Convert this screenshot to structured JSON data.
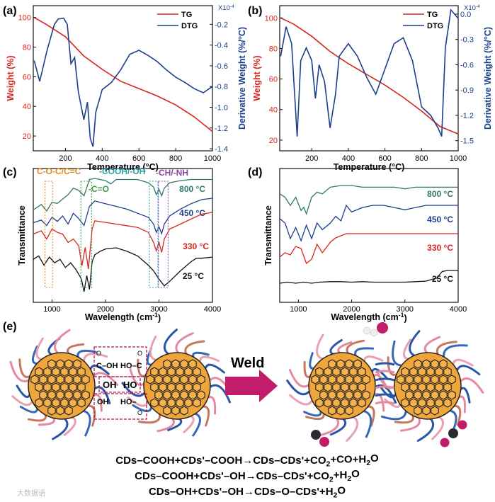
{
  "panels": {
    "a": {
      "label": "(a)"
    },
    "b": {
      "label": "(b)"
    },
    "c": {
      "label": "(c)"
    },
    "d": {
      "label": "(d)"
    },
    "e": {
      "label": "(e)"
    }
  },
  "chart_data": [
    {
      "id": "a",
      "type": "line",
      "title": "",
      "xlabel": "Temperature (°C)",
      "ylabel": "Weight (%)",
      "y2label": "Derivative Weight (%/°C)",
      "y2scale": "X10-4",
      "xlim": [
        25,
        1000
      ],
      "ylim": [
        10,
        108
      ],
      "y2lim": [
        -1.42,
        -0.02
      ],
      "xticks": [
        200,
        400,
        600,
        800,
        1000
      ],
      "yticks": [
        20,
        40,
        60,
        80,
        100
      ],
      "y2ticks": [
        -0.2,
        -0.4,
        -0.6,
        -0.8,
        -1.0,
        -1.2,
        -1.4
      ],
      "legend": [
        "TG",
        "DTG"
      ],
      "series": [
        {
          "name": "TG",
          "axis": "left",
          "color": "#d7261e",
          "x": [
            30,
            100,
            200,
            300,
            400,
            500,
            600,
            700,
            800,
            900,
            1000
          ],
          "y": [
            100,
            95,
            87,
            74,
            65,
            57,
            52,
            47,
            41,
            33,
            23
          ]
        },
        {
          "name": "DTG",
          "axis": "right",
          "color": "#1b3f8b",
          "x": [
            30,
            60,
            100,
            140,
            160,
            190,
            210,
            230,
            250,
            270,
            300,
            320,
            335,
            350,
            365,
            400,
            450,
            500,
            550,
            600,
            650,
            700,
            750,
            800,
            850,
            900,
            950,
            1000
          ],
          "y": [
            -0.55,
            -0.75,
            -0.45,
            -0.2,
            -0.15,
            -0.14,
            -0.2,
            -0.58,
            -0.52,
            -0.85,
            -1.12,
            -0.95,
            -1.3,
            -1.38,
            -1.05,
            -0.83,
            -0.76,
            -0.64,
            -0.49,
            -0.45,
            -0.5,
            -0.56,
            -0.64,
            -0.71,
            -0.76,
            -0.82,
            -0.86,
            -0.8
          ]
        }
      ]
    },
    {
      "id": "b",
      "type": "line",
      "xlabel": "Temperature (°C)",
      "ylabel": "Weight (%)",
      "y2label": "Derivative Weight (%/°C)",
      "y2scale": "X10-4",
      "xlim": [
        25,
        1000
      ],
      "ylim": [
        13,
        108
      ],
      "y2lim": [
        -1.62,
        0.1
      ],
      "xticks": [
        200,
        400,
        600,
        800,
        1000
      ],
      "yticks": [
        20,
        40,
        60,
        80,
        100
      ],
      "y2ticks": [
        0.0,
        -0.3,
        -0.6,
        -0.9,
        -1.2,
        -1.5
      ],
      "legend": [
        "TG",
        "DTG"
      ],
      "series": [
        {
          "name": "TG",
          "axis": "left",
          "color": "#d7261e",
          "x": [
            30,
            100,
            200,
            300,
            400,
            500,
            600,
            700,
            800,
            900,
            1000
          ],
          "y": [
            100,
            96,
            88,
            78,
            70,
            63,
            56,
            48,
            39,
            29,
            24
          ]
        },
        {
          "name": "DTG",
          "axis": "right",
          "color": "#1b3f8b",
          "x": [
            30,
            60,
            90,
            120,
            140,
            170,
            200,
            220,
            240,
            270,
            300,
            330,
            350,
            400,
            450,
            500,
            550,
            600,
            650,
            700,
            750,
            800,
            850,
            890,
            910,
            930,
            960,
            1000
          ],
          "y": [
            -0.5,
            -0.15,
            -0.35,
            -1.45,
            -0.55,
            -0.4,
            -0.55,
            -1.0,
            -0.6,
            -0.8,
            -1.35,
            -0.95,
            -0.5,
            -0.35,
            -0.5,
            -0.75,
            -0.95,
            -0.65,
            -0.35,
            -0.28,
            -0.55,
            -1.1,
            -1.2,
            -1.35,
            -1.45,
            -0.4,
            0.05,
            -0.05
          ]
        }
      ]
    },
    {
      "id": "c",
      "type": "line",
      "xlabel": "Wavelength (cm-1)",
      "ylabel": "Transmittance",
      "xlim": [
        650,
        4000
      ],
      "xticks": [
        1000,
        2000,
        3000,
        4000
      ],
      "annotations": [
        "C-O-C/C=C",
        "-COOH/-OH",
        "-CH/-NH",
        "-C=O"
      ],
      "series": [
        {
          "name": "800 °C",
          "color": "#2e7a6a",
          "offset": 0,
          "x": [
            650,
            800,
            900,
            1000,
            1100,
            1200,
            1300,
            1400,
            1500,
            1600,
            1700,
            1800,
            2000,
            2100,
            2200,
            2400,
            2600,
            2800,
            2900,
            2950,
            3000,
            3050,
            3100,
            3200,
            3400,
            3600,
            3800,
            4000
          ],
          "y": [
            0.2,
            0.7,
            0.1,
            0.9,
            0.8,
            1.2,
            1.6,
            2.2,
            2.0,
            1.5,
            3.0,
            3.1,
            2.9,
            2.6,
            3.0,
            3.0,
            3.0,
            2.7,
            2.3,
            1.6,
            2.1,
            1.5,
            2.2,
            2.7,
            2.9,
            3.0,
            3.0,
            3.0
          ]
        },
        {
          "name": "450 °C",
          "color": "#1b3f8b",
          "offset": 0,
          "x": [
            650,
            800,
            900,
            1000,
            1100,
            1200,
            1300,
            1400,
            1500,
            1600,
            1700,
            1800,
            2000,
            2200,
            2400,
            2600,
            2800,
            2900,
            2950,
            3000,
            3050,
            3100,
            3200,
            3400,
            3600,
            3800,
            4000
          ],
          "y": [
            0.4,
            0.6,
            0.2,
            0.8,
            0.5,
            0.9,
            0.3,
            1.1,
            0.7,
            0.2,
            1.6,
            2.0,
            1.8,
            1.6,
            1.4,
            1.1,
            0.8,
            0.3,
            -0.3,
            0.1,
            -0.4,
            0.3,
            0.9,
            1.4,
            1.8,
            2.1,
            2.2
          ]
        },
        {
          "name": "330 °C",
          "color": "#d7261e",
          "offset": 0,
          "x": [
            650,
            800,
            900,
            1000,
            1100,
            1200,
            1300,
            1400,
            1500,
            1560,
            1620,
            1680,
            1750,
            1800,
            2000,
            2200,
            2400,
            2600,
            2800,
            2900,
            2950,
            3000,
            3050,
            3100,
            3200,
            3400,
            3600,
            3800,
            4000
          ],
          "y": [
            0.3,
            0.5,
            0.0,
            0.6,
            0.4,
            0.3,
            -0.2,
            0.0,
            -0.4,
            -1.6,
            -0.5,
            -1.8,
            0.6,
            1.1,
            1.0,
            0.9,
            0.8,
            0.7,
            0.4,
            -0.2,
            -0.7,
            -0.2,
            -0.8,
            0.0,
            0.6,
            0.9,
            1.2,
            1.5,
            1.6
          ]
        },
        {
          "name": "25 °C",
          "color": "#111111",
          "offset": 0,
          "x": [
            650,
            750,
            850,
            950,
            1050,
            1150,
            1250,
            1350,
            1450,
            1550,
            1600,
            1650,
            1700,
            1750,
            1800,
            1900,
            2000,
            2200,
            2400,
            2600,
            2800,
            2900,
            3000,
            3100,
            3200,
            3400,
            3600,
            3700,
            3800,
            4000
          ],
          "y": [
            -0.6,
            -0.3,
            -1.1,
            -0.4,
            -0.9,
            -0.6,
            -1.3,
            -0.9,
            -1.5,
            -2.3,
            -3.4,
            -2.0,
            -3.2,
            -0.8,
            -0.2,
            0.1,
            0.3,
            0.4,
            0.1,
            -0.3,
            -1.1,
            -1.6,
            -2.3,
            -2.9,
            -2.5,
            -1.6,
            -0.8,
            -0.5,
            -0.5,
            -0.4
          ]
        }
      ]
    },
    {
      "id": "d",
      "type": "line",
      "xlabel": "Wavelength (cm-1)",
      "ylabel": "Transmittance",
      "xlim": [
        650,
        4000
      ],
      "xticks": [
        1000,
        2000,
        3000,
        4000
      ],
      "series": [
        {
          "name": "800 °C",
          "color": "#2e7a6a",
          "x": [
            650,
            750,
            850,
            950,
            1050,
            1100,
            1150,
            1250,
            1350,
            1450,
            1600,
            1800,
            2000,
            2200,
            2400,
            2600,
            2800,
            3000,
            3200,
            3400,
            3600,
            3800,
            4000
          ],
          "y": [
            3.2,
            3.0,
            2.5,
            3.0,
            2.2,
            2.4,
            2.0,
            3.0,
            3.3,
            3.2,
            3.6,
            3.7,
            3.7,
            3.6,
            3.6,
            3.6,
            3.6,
            3.5,
            3.6,
            3.6,
            3.6,
            3.6,
            3.6
          ]
        },
        {
          "name": "450 °C",
          "color": "#1b3f8b",
          "x": [
            650,
            750,
            850,
            950,
            1050,
            1150,
            1250,
            1350,
            1450,
            1600,
            1700,
            1800,
            1900,
            2000,
            2200,
            2400,
            2600,
            2800,
            3000,
            3200,
            3400,
            3600,
            3800,
            4000
          ],
          "y": [
            1.8,
            1.6,
            0.9,
            1.4,
            0.8,
            1.5,
            0.9,
            1.6,
            1.3,
            1.6,
            1.9,
            1.7,
            2.4,
            2.1,
            2.3,
            2.4,
            2.4,
            2.3,
            2.2,
            2.3,
            2.4,
            2.4,
            2.4,
            2.4
          ]
        },
        {
          "name": "330 °C",
          "color": "#d7261e",
          "x": [
            650,
            750,
            850,
            950,
            1050,
            1150,
            1250,
            1350,
            1450,
            1600,
            1700,
            1800,
            1900,
            2000,
            2200,
            2400,
            2600,
            2800,
            3000,
            3200,
            3400,
            3600,
            3800,
            4000
          ],
          "y": [
            -0.1,
            0.1,
            0.0,
            0.4,
            0.3,
            -0.4,
            -0.2,
            0.5,
            0.1,
            0.6,
            0.8,
            0.9,
            1.0,
            1.0,
            1.0,
            1.0,
            1.0,
            1.0,
            1.0,
            1.0,
            1.0,
            1.0,
            1.0,
            1.0
          ]
        },
        {
          "name": "25 °C",
          "color": "#111111",
          "x": [
            650,
            800,
            950,
            1100,
            1250,
            1400,
            1600,
            1800,
            2000,
            2200,
            2400,
            2600,
            2800,
            3000,
            3200,
            3400,
            3600,
            3700,
            3800,
            4000
          ],
          "y": [
            -1.6,
            -1.5,
            -1.6,
            -1.5,
            -1.6,
            -1.5,
            -1.45,
            -1.45,
            -1.5,
            -1.45,
            -1.5,
            -1.5,
            -1.5,
            -1.5,
            -1.45,
            -1.4,
            -1.1,
            -0.5,
            -0.4,
            -0.4
          ]
        }
      ]
    }
  ],
  "schematic": {
    "arrow_label": "Weld",
    "group_labels": [
      "C–OH",
      "HO–C",
      "OH",
      "HO",
      "OH",
      "HO–"
    ],
    "group_marks": [
      "O",
      "O",
      "O"
    ],
    "equations": [
      "CDs–COOH+CDs'–COOH→CDs–CDs'+CO2+CO+H2O",
      "CDs–COOH+CDs'–OH→CDs–CDs'+CO2+H2O",
      "CDs–OH+CDs'–OH→CDs–O–CDs'+H2O"
    ]
  },
  "watermark": "大数据语",
  "colors": {
    "red": "#d7261e",
    "blue": "#1b3f8b",
    "green": "#2e7a6a",
    "orange": "#e08a18",
    "teal": "#28a3a8",
    "purple": "#8e44a8",
    "pink": "#c21d6b"
  }
}
